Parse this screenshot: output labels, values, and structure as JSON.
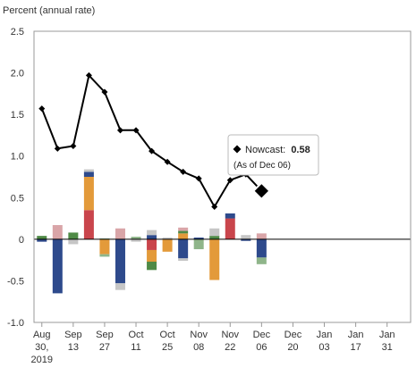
{
  "chart_data": {
    "type": "bar",
    "ylabel": "Percent (annual rate)",
    "ylim": [
      -1.0,
      2.5
    ],
    "y_ticks": [
      "2.5",
      "2.0",
      "1.5",
      "1.0",
      "0.5",
      "0",
      "-0.5",
      "-1.0"
    ],
    "x_tick_labels": [
      [
        "Aug",
        "30,",
        "2019"
      ],
      [
        "Sep",
        "13"
      ],
      [
        "Sep",
        "27"
      ],
      [
        "Oct",
        "11"
      ],
      [
        "Oct",
        "25"
      ],
      [
        "Nov",
        "08"
      ],
      [
        "Nov",
        "22"
      ],
      [
        "Dec",
        "06"
      ],
      [
        "Dec",
        "20"
      ],
      [
        "Jan",
        "03"
      ],
      [
        "Jan",
        "17"
      ],
      [
        "Jan",
        "31"
      ]
    ],
    "grid": false,
    "colors": {
      "navy": "#2e4a8c",
      "orange": "#e39a3a",
      "red": "#c9454c",
      "green": "#4f8a46",
      "lightgreen": "#8fb58a",
      "pink": "#d9a5a8",
      "grey": "#c6c6c6",
      "line": "#000000"
    },
    "bars": [
      {
        "x": 0.25,
        "segments": [
          {
            "color": "green",
            "value": 0.04
          },
          {
            "color": "navy",
            "value": -0.03
          }
        ]
      },
      {
        "x": 0.75,
        "segments": [
          {
            "color": "pink",
            "value": 0.17
          },
          {
            "color": "navy",
            "value": -0.65
          }
        ]
      },
      {
        "x": 1.25,
        "segments": [
          {
            "color": "green",
            "value": 0.08
          },
          {
            "color": "grey",
            "value": -0.06
          }
        ]
      },
      {
        "x": 1.75,
        "segments": [
          {
            "color": "red",
            "value": 0.35
          },
          {
            "color": "orange",
            "value": 0.4
          },
          {
            "color": "navy",
            "value": 0.06
          },
          {
            "color": "grey",
            "value": 0.03
          }
        ]
      },
      {
        "x": 2.25,
        "segments": [
          {
            "color": "lightgreen",
            "value": 0.01
          },
          {
            "color": "orange",
            "value": -0.18
          },
          {
            "color": "lightgreen",
            "value": -0.03
          }
        ]
      },
      {
        "x": 2.75,
        "segments": [
          {
            "color": "pink",
            "value": 0.13
          },
          {
            "color": "navy",
            "value": -0.53
          },
          {
            "color": "grey",
            "value": -0.08
          }
        ]
      },
      {
        "x": 3.25,
        "segments": [
          {
            "color": "lightgreen",
            "value": 0.03
          },
          {
            "color": "grey",
            "value": -0.03
          }
        ]
      },
      {
        "x": 3.75,
        "segments": [
          {
            "color": "navy",
            "value": 0.05
          },
          {
            "color": "grey",
            "value": 0.06
          },
          {
            "color": "red",
            "value": -0.13
          },
          {
            "color": "orange",
            "value": -0.14
          },
          {
            "color": "green",
            "value": -0.1
          }
        ]
      },
      {
        "x": 4.25,
        "segments": [
          {
            "color": "grey",
            "value": 0.02
          },
          {
            "color": "orange",
            "value": -0.15
          }
        ]
      },
      {
        "x": 4.75,
        "segments": [
          {
            "color": "orange",
            "value": 0.07
          },
          {
            "color": "green",
            "value": 0.03
          },
          {
            "color": "pink",
            "value": 0.04
          },
          {
            "color": "navy",
            "value": -0.23
          },
          {
            "color": "grey",
            "value": -0.03
          }
        ]
      },
      {
        "x": 5.25,
        "segments": [
          {
            "color": "navy",
            "value": 0.02
          },
          {
            "color": "lightgreen",
            "value": -0.12
          }
        ]
      },
      {
        "x": 5.75,
        "segments": [
          {
            "color": "green",
            "value": 0.04
          },
          {
            "color": "grey",
            "value": 0.09
          },
          {
            "color": "orange",
            "value": -0.49
          }
        ]
      },
      {
        "x": 6.25,
        "segments": [
          {
            "color": "red",
            "value": 0.25
          },
          {
            "color": "navy",
            "value": 0.06
          }
        ]
      },
      {
        "x": 6.75,
        "segments": [
          {
            "color": "grey",
            "value": 0.05
          },
          {
            "color": "navy",
            "value": -0.02
          }
        ]
      },
      {
        "x": 7.25,
        "segments": [
          {
            "color": "pink",
            "value": 0.07
          },
          {
            "color": "navy",
            "value": -0.22
          },
          {
            "color": "lightgreen",
            "value": -0.08
          }
        ]
      }
    ],
    "series": [
      {
        "type": "line",
        "x": [
          0.25,
          0.75,
          1.25,
          1.75,
          2.25,
          2.75,
          3.25,
          3.75,
          4.25,
          4.75,
          5.25,
          5.75,
          6.25,
          6.75,
          7.25
        ],
        "values": [
          1.57,
          1.09,
          1.12,
          1.97,
          1.77,
          1.31,
          1.31,
          1.06,
          0.93,
          0.81,
          0.73,
          0.39,
          0.71,
          0.78,
          0.58
        ]
      }
    ],
    "nowcast": {
      "x": 7.25,
      "value": 0.58,
      "label": "Nowcast:",
      "value_text": "0.58",
      "as_of": "(As of Dec 06)"
    }
  }
}
